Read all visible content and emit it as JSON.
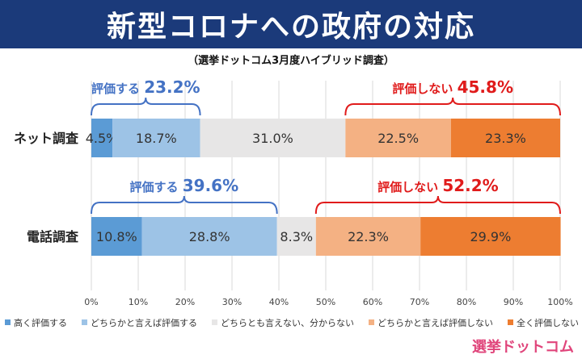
{
  "header": {
    "title": "新型コロナへの政府の対応",
    "subtitle": "（選挙ドットコム3月度ハイブリッド調査）"
  },
  "colors": {
    "banner": "#1b3a7a",
    "high_eval": "#5b9bd5",
    "somewhat_eval": "#9dc3e6",
    "neutral": "#e7e6e6",
    "somewhat_not": "#f4b183",
    "not_at_all": "#ed7d31",
    "eval_annotation": "#4472c4",
    "not_eval_annotation": "#e01b1b"
  },
  "annotations": [
    {
      "label": "評価する",
      "value": "23.2%"
    },
    {
      "label": "評価しない",
      "value": "45.8%"
    },
    {
      "label": "評価する",
      "value": "39.6%"
    },
    {
      "label": "評価しない",
      "value": "52.2%"
    }
  ],
  "chart_data": {
    "type": "bar",
    "orientation": "horizontal-stacked-100",
    "categories": [
      "ネット調査",
      "電話調査"
    ],
    "series": [
      {
        "name": "高く評価する",
        "color": "#5b9bd5",
        "values": [
          4.5,
          10.8
        ],
        "labels": [
          "4.5%",
          "10.8%"
        ]
      },
      {
        "name": "どちらかと言えば評価する",
        "color": "#9dc3e6",
        "values": [
          18.7,
          28.8
        ],
        "labels": [
          "18.7%",
          "28.8%"
        ]
      },
      {
        "name": "どちらとも言えない、分からない",
        "color": "#e7e6e6",
        "values": [
          31.0,
          8.3
        ],
        "labels": [
          "31.0%",
          "8.3%"
        ]
      },
      {
        "name": "どちらかと言えば評価しない",
        "color": "#f4b183",
        "values": [
          22.5,
          22.3
        ],
        "labels": [
          "22.5%",
          "22.3%"
        ]
      },
      {
        "name": "全く評価しない",
        "color": "#ed7d31",
        "values": [
          23.3,
          29.9
        ],
        "labels": [
          "23.3%",
          "29.9%"
        ]
      }
    ],
    "xlim": [
      0,
      100
    ],
    "x_ticks": [
      "0%",
      "10%",
      "20%",
      "30%",
      "40%",
      "50%",
      "60%",
      "70%",
      "80%",
      "90%",
      "100%"
    ],
    "grid": true,
    "legend_position": "bottom"
  },
  "logo": "選挙ドットコム"
}
